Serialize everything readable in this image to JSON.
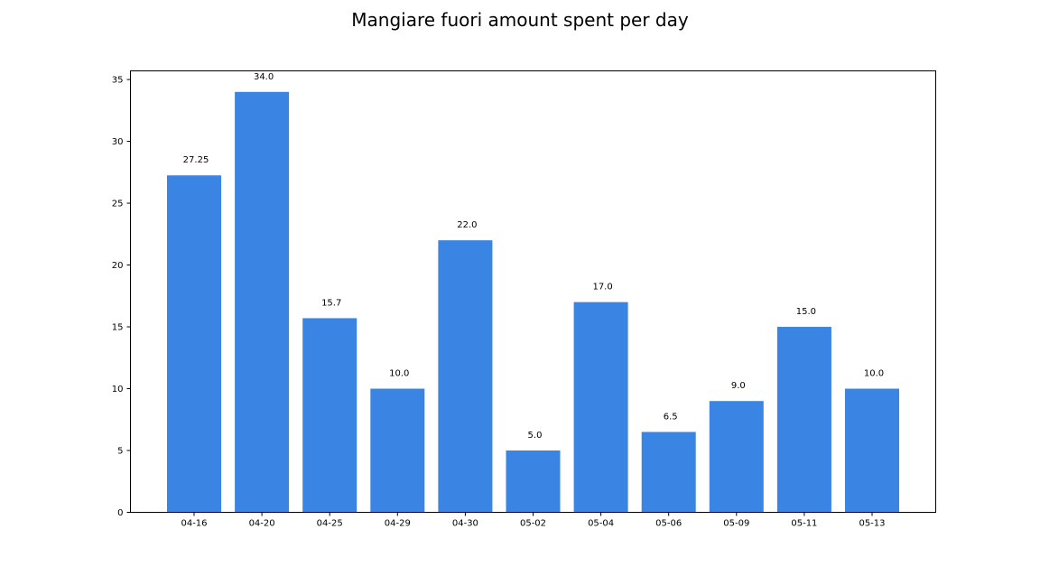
{
  "chart_data": {
    "type": "bar",
    "title": "Mangiare fuori amount spent per day",
    "xlabel": "",
    "ylabel": "",
    "categories": [
      "04-16",
      "04-20",
      "04-25",
      "04-29",
      "04-30",
      "05-02",
      "05-04",
      "05-06",
      "05-09",
      "05-11",
      "05-13"
    ],
    "values": [
      27.25,
      34.0,
      15.7,
      10.0,
      22.0,
      5.0,
      17.0,
      6.5,
      9.0,
      15.0,
      10.0
    ],
    "data_labels": [
      "27.25",
      "34.0",
      "15.7",
      "10.0",
      "22.0",
      "5.0",
      "17.0",
      "6.5",
      "9.0",
      "15.0",
      "10.0"
    ],
    "ylim": [
      0,
      35.7
    ],
    "yticks": [
      0,
      5,
      10,
      15,
      20,
      25,
      30,
      35
    ],
    "grid": false,
    "legend": "none",
    "bar_color": "#3a84e4"
  }
}
